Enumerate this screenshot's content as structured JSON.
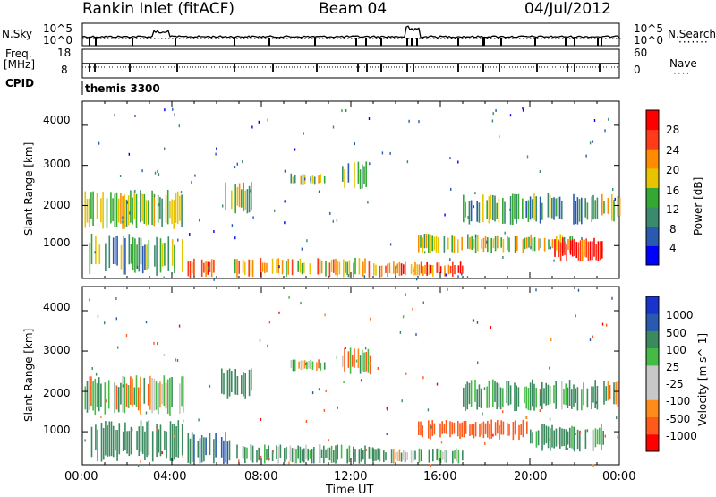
{
  "header": {
    "title": "Rankin Inlet (fitACF)",
    "beam": "Beam 04",
    "date": "04/Jul/2012"
  },
  "top_panels": {
    "noise": {
      "left_label": "N.Sky",
      "right_label": "N.Search",
      "left_ticks": [
        "10^5",
        "10^0"
      ],
      "right_ticks": [
        "10^5",
        "10^0"
      ]
    },
    "freq": {
      "left_label_1": "Freq.",
      "left_label_2": "[MHz]",
      "right_label": "Nave",
      "left_ticks": [
        "18",
        "8"
      ],
      "right_ticks": [
        "60",
        "0"
      ]
    },
    "cpid": {
      "label": "CPID",
      "program": "themis 3300"
    }
  },
  "colors": {
    "power_scale": [
      "#0000ff",
      "#2a5ab0",
      "#3a8a6e",
      "#33a833",
      "#e8c400",
      "#ff8c00",
      "#ff3b1a",
      "#ff0000"
    ],
    "velocity_scale": [
      "#ff0000",
      "#ff5a1a",
      "#ff8c1a",
      "#c8c8c8",
      "#c8c8c8",
      "#44bb44",
      "#3a8a5e",
      "#2a5ab0",
      "#1a33cc"
    ]
  },
  "chart_data": [
    {
      "type": "heatmap",
      "ylabel": "Slant Range [km]",
      "xlabel": "Time UT",
      "xlim": [
        "00:00",
        "24:00"
      ],
      "ylim": [
        180,
        4600
      ],
      "y_ticks": [
        "1000",
        "2000",
        "3000",
        "4000"
      ],
      "x_ticks": [
        "00:00",
        "04:00",
        "08:00",
        "12:00",
        "16:00",
        "20:00",
        "00:00"
      ],
      "colorbar": {
        "label": "Power [dB]",
        "ticks": [
          "4",
          "8",
          "12",
          "16",
          "20",
          "24",
          "28"
        ],
        "range": [
          0,
          30
        ]
      },
      "echo_regions": [
        {
          "t_start": 0.1,
          "t_end": 4.5,
          "r_min": 1400,
          "r_max": 2400,
          "level": 14
        },
        {
          "t_start": 0.3,
          "t_end": 4.5,
          "r_min": 250,
          "r_max": 1300,
          "level": 12
        },
        {
          "t_start": 4.7,
          "t_end": 6.6,
          "r_min": 180,
          "r_max": 700,
          "level": 28
        },
        {
          "t_start": 6.8,
          "t_end": 13,
          "r_min": 200,
          "r_max": 700,
          "level": 18
        },
        {
          "t_start": 13,
          "t_end": 17,
          "r_min": 200,
          "r_max": 600,
          "level": 22
        },
        {
          "t_start": 15,
          "t_end": 22,
          "r_min": 800,
          "r_max": 1300,
          "level": 16
        },
        {
          "t_start": 21,
          "t_end": 23.3,
          "r_min": 600,
          "r_max": 1200,
          "level": 26
        },
        {
          "t_start": 17,
          "t_end": 23,
          "r_min": 1500,
          "r_max": 2300,
          "level": 10
        },
        {
          "t_start": 9.3,
          "t_end": 10.8,
          "r_min": 2500,
          "r_max": 2800,
          "level": 14
        },
        {
          "t_start": 11.6,
          "t_end": 12.9,
          "r_min": 2400,
          "r_max": 3100,
          "level": 12
        },
        {
          "t_start": 6.2,
          "t_end": 7.6,
          "r_min": 1800,
          "r_max": 2600,
          "level": 14
        },
        {
          "t_start": 23.2,
          "t_end": 24,
          "r_min": 1600,
          "r_max": 2300,
          "level": 16
        }
      ]
    },
    {
      "type": "heatmap",
      "ylabel": "Slant Range [km]",
      "xlabel": "Time UT",
      "xlim": [
        "00:00",
        "24:00"
      ],
      "ylim": [
        180,
        4600
      ],
      "y_ticks": [
        "1000",
        "2000",
        "3000",
        "4000"
      ],
      "x_ticks": [
        "00:00",
        "04:00",
        "08:00",
        "12:00",
        "16:00",
        "20:00",
        "00:00"
      ],
      "colorbar": {
        "label": "Velocity [m s^-1]",
        "ticks": [
          "1000",
          "500",
          "100",
          "25",
          "-25",
          "-100",
          "-500",
          "-1000"
        ],
        "range": [
          -1000,
          1000
        ]
      },
      "echo_regions": [
        {
          "t_start": 0.1,
          "t_end": 4.5,
          "r_min": 1400,
          "r_max": 2400,
          "level": 0
        },
        {
          "t_start": 0.3,
          "t_end": 4.5,
          "r_min": 250,
          "r_max": 1300,
          "level": 300
        },
        {
          "t_start": 4.7,
          "t_end": 6.6,
          "r_min": 180,
          "r_max": 1000,
          "level": 500
        },
        {
          "t_start": 6.8,
          "t_end": 13,
          "r_min": 200,
          "r_max": 700,
          "level": 200
        },
        {
          "t_start": 13,
          "t_end": 17,
          "r_min": 200,
          "r_max": 600,
          "level": 100
        },
        {
          "t_start": 15,
          "t_end": 20,
          "r_min": 800,
          "r_max": 1300,
          "level": -300
        },
        {
          "t_start": 20,
          "t_end": 23.3,
          "r_min": 500,
          "r_max": 1200,
          "level": 200
        },
        {
          "t_start": 17,
          "t_end": 23,
          "r_min": 1500,
          "r_max": 2300,
          "level": 200
        },
        {
          "t_start": 9.3,
          "t_end": 10.8,
          "r_min": 2500,
          "r_max": 2800,
          "level": 0
        },
        {
          "t_start": 11.6,
          "t_end": 12.9,
          "r_min": 2400,
          "r_max": 3100,
          "level": 0
        },
        {
          "t_start": 6.2,
          "t_end": 7.6,
          "r_min": 1800,
          "r_max": 2600,
          "level": 300
        },
        {
          "t_start": 23.2,
          "t_end": 24,
          "r_min": 1600,
          "r_max": 2300,
          "level": 0
        }
      ]
    }
  ]
}
